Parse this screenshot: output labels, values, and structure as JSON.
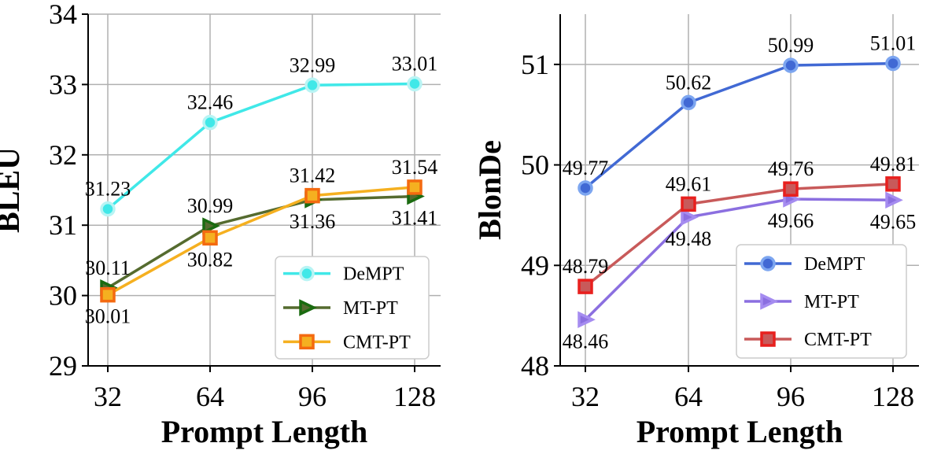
{
  "chart_data": [
    {
      "type": "line",
      "xlabel": "Prompt Length",
      "ylabel": "BLEU",
      "categories": [
        "32",
        "64",
        "96",
        "128"
      ],
      "ylim": [
        29,
        34
      ],
      "yticks": [
        "29",
        "30",
        "31",
        "32",
        "33",
        "34"
      ],
      "grid": true,
      "legend": "bottom-right",
      "series": [
        {
          "name": "DeMPT",
          "values": [
            31.23,
            32.46,
            32.99,
            33.01
          ],
          "labels": [
            "31.23",
            "32.46",
            "32.99",
            "33.01"
          ],
          "label_pos": [
            "above",
            "above",
            "above",
            "above"
          ],
          "color": "#40e8e8",
          "edge": "#b8f4f4",
          "marker": "circle"
        },
        {
          "name": "MT-PT",
          "values": [
            30.11,
            30.99,
            31.36,
            31.41
          ],
          "labels": [
            "30.11",
            "30.99",
            "31.36",
            "31.41"
          ],
          "label_pos": [
            "above",
            "above",
            "below",
            "below"
          ],
          "color": "#556b2f",
          "edge": "#1a6b10",
          "marker": "triangle-right"
        },
        {
          "name": "CMT-PT",
          "values": [
            30.01,
            30.82,
            31.42,
            31.54
          ],
          "labels": [
            "30.01",
            "30.82",
            "31.42",
            "31.54"
          ],
          "label_pos": [
            "below",
            "below",
            "above",
            "above"
          ],
          "color": "#f5b020",
          "edge": "#f46a10",
          "marker": "square"
        }
      ]
    },
    {
      "type": "line",
      "xlabel": "Prompt Length",
      "ylabel": "BlonDe",
      "categories": [
        "32",
        "64",
        "96",
        "128"
      ],
      "ylim": [
        48,
        51.5
      ],
      "yticks": [
        "48",
        "49",
        "50",
        "51"
      ],
      "grid": true,
      "legend": "bottom-right",
      "series": [
        {
          "name": "DeMPT",
          "values": [
            49.77,
            50.62,
            50.99,
            51.01
          ],
          "labels": [
            "49.77",
            "50.62",
            "50.99",
            "51.01"
          ],
          "label_pos": [
            "above",
            "above",
            "above",
            "above"
          ],
          "color": "#4169d4",
          "edge": "#7da6f0",
          "marker": "circle"
        },
        {
          "name": "MT-PT",
          "values": [
            48.46,
            49.48,
            49.66,
            49.65
          ],
          "labels": [
            "48.46",
            "49.48",
            "49.66",
            "49.65"
          ],
          "label_pos": [
            "below",
            "below",
            "below",
            "below"
          ],
          "color": "#8b6fe0",
          "edge": "#a58cf0",
          "marker": "triangle-right"
        },
        {
          "name": "CMT-PT",
          "values": [
            48.79,
            49.61,
            49.76,
            49.81
          ],
          "labels": [
            "48.79",
            "49.61",
            "49.76",
            "49.81"
          ],
          "label_pos": [
            "above",
            "above",
            "above",
            "above"
          ],
          "color": "#c85a5a",
          "edge": "#e8201e",
          "marker": "square"
        }
      ]
    }
  ]
}
